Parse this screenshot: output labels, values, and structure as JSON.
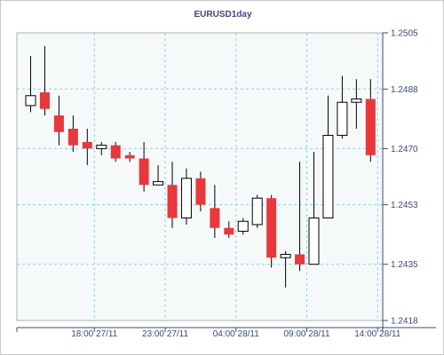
{
  "chart_data": {
    "type": "candlestick",
    "title": "EURUSD1day",
    "y_ticks": [
      "1.2505",
      "1.2488",
      "1.2470",
      "1.2453",
      "1.2435",
      "1.2418"
    ],
    "y_tick_values": [
      1.2505,
      1.2488,
      1.247,
      1.2453,
      1.2435,
      1.2418
    ],
    "ylim": [
      1.2418,
      1.2505
    ],
    "x_ticks": [
      "18:00 27/11",
      "23:00 27/11",
      "04:00 28/11",
      "09:00 28/11",
      "14:00 28/11"
    ],
    "x_tick_index": [
      4.5,
      9.5,
      14.5,
      19.5,
      24.5
    ],
    "grid": true,
    "colors": {
      "up": "#ffffff",
      "down": "#e8383b",
      "border": "#000000",
      "grid": "#8fd2d8",
      "plot_bg": "#f6f9f9"
    },
    "candles": [
      {
        "o": 1.2483,
        "h": 1.2498,
        "l": 1.2481,
        "c": 1.2486
      },
      {
        "o": 1.2487,
        "h": 1.2501,
        "l": 1.248,
        "c": 1.2482
      },
      {
        "o": 1.248,
        "h": 1.2486,
        "l": 1.2471,
        "c": 1.2475
      },
      {
        "o": 1.2476,
        "h": 1.248,
        "l": 1.2469,
        "c": 1.2471
      },
      {
        "o": 1.2472,
        "h": 1.2476,
        "l": 1.2465,
        "c": 1.247
      },
      {
        "o": 1.247,
        "h": 1.2472,
        "l": 1.2468,
        "c": 1.2471
      },
      {
        "o": 1.2471,
        "h": 1.2472,
        "l": 1.2466,
        "c": 1.2467
      },
      {
        "o": 1.2468,
        "h": 1.2469,
        "l": 1.2466,
        "c": 1.2467
      },
      {
        "o": 1.2467,
        "h": 1.2472,
        "l": 1.2457,
        "c": 1.2459
      },
      {
        "o": 1.2459,
        "h": 1.2465,
        "l": 1.2459,
        "c": 1.246
      },
      {
        "o": 1.2459,
        "h": 1.2466,
        "l": 1.2446,
        "c": 1.2449
      },
      {
        "o": 1.2449,
        "h": 1.2464,
        "l": 1.2447,
        "c": 1.2461
      },
      {
        "o": 1.2461,
        "h": 1.2463,
        "l": 1.2451,
        "c": 1.2453
      },
      {
        "o": 1.2452,
        "h": 1.2459,
        "l": 1.2443,
        "c": 1.2446
      },
      {
        "o": 1.2446,
        "h": 1.2448,
        "l": 1.2443,
        "c": 1.2444
      },
      {
        "o": 1.2445,
        "h": 1.2449,
        "l": 1.2444,
        "c": 1.2448
      },
      {
        "o": 1.2447,
        "h": 1.2456,
        "l": 1.2446,
        "c": 1.2455
      },
      {
        "o": 1.2455,
        "h": 1.2456,
        "l": 1.2434,
        "c": 1.2437
      },
      {
        "o": 1.2437,
        "h": 1.2439,
        "l": 1.2428,
        "c": 1.2438
      },
      {
        "o": 1.2438,
        "h": 1.2466,
        "l": 1.2433,
        "c": 1.2435
      },
      {
        "o": 1.2435,
        "h": 1.2469,
        "l": 1.2435,
        "c": 1.2449
      },
      {
        "o": 1.2449,
        "h": 1.2486,
        "l": 1.2449,
        "c": 1.2474
      },
      {
        "o": 1.2474,
        "h": 1.2492,
        "l": 1.2473,
        "c": 1.2484
      },
      {
        "o": 1.2484,
        "h": 1.2491,
        "l": 1.2476,
        "c": 1.2485
      },
      {
        "o": 1.2485,
        "h": 1.2491,
        "l": 1.2466,
        "c": 1.2468
      }
    ]
  }
}
